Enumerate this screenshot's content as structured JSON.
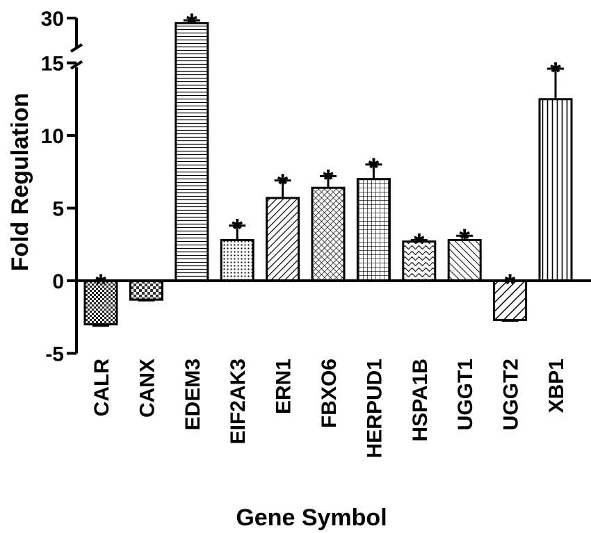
{
  "chart_data": {
    "type": "bar",
    "xlabel": "Gene Symbol",
    "ylabel": "Fold Regulation",
    "y_axis_broken": true,
    "y_break_between": [
      15,
      30
    ],
    "lower_ylim": [
      -5,
      15
    ],
    "upper_ylim": [
      15,
      30
    ],
    "yticks": [
      -5,
      0,
      5,
      10,
      15,
      30
    ],
    "categories": [
      "CALR",
      "CANX",
      "EDEM3",
      "EIF2AK3",
      "ERN1",
      "FBXO6",
      "HERPUD1",
      "HSPA1B",
      "UGGT1",
      "UGGT2",
      "XBP1"
    ],
    "values": [
      -3.0,
      -1.3,
      27.5,
      2.8,
      5.7,
      6.4,
      7.0,
      2.7,
      2.8,
      -2.7,
      12.5
    ],
    "error_upper": [
      0.1,
      0.05,
      1.4,
      1.0,
      1.2,
      0.8,
      1.0,
      0.1,
      0.3,
      0.05,
      2.1
    ],
    "significant": [
      true,
      false,
      true,
      true,
      true,
      true,
      true,
      true,
      true,
      true,
      true
    ],
    "significance_marker": "*",
    "patterns": [
      "checker",
      "checker-fine",
      "horizontal",
      "dots",
      "diagonal-right",
      "crosshatch",
      "grid",
      "waves",
      "diagonal-left",
      "diagonal-thick",
      "vertical"
    ]
  }
}
